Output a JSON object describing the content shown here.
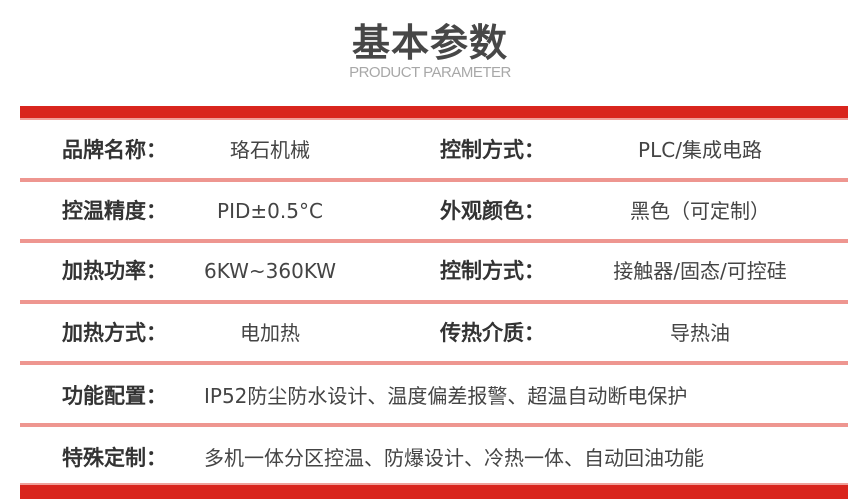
{
  "header": {
    "title": "基本参数",
    "subtitle": "PRODUCT PARAMETER"
  },
  "colors": {
    "accent": "#d9251d",
    "divider": "#ee9690"
  },
  "rows": [
    {
      "label1": "品牌名称：",
      "value1": "珞石机械",
      "label2": "控制方式：",
      "value2": "PLC/集成电路"
    },
    {
      "label1": "控温精度：",
      "value1": "PID±0.5°C",
      "label2": "外观颜色：",
      "value2": "黑色（可定制）"
    },
    {
      "label1": "加热功率：",
      "value1": "6KW~360KW",
      "label2": "控制方式：",
      "value2": "接触器/固态/可控硅"
    },
    {
      "label1": "加热方式：",
      "value1": "电加热",
      "label2": "传热介质：",
      "value2": "导热油"
    }
  ],
  "long_rows": [
    {
      "label": "功能配置：",
      "value": "IP52防尘防水设计、温度偏差报警、超温自动断电保护"
    },
    {
      "label": "特殊定制：",
      "value": "多机一体分区控温、防爆设计、冷热一体、自动回油功能"
    }
  ]
}
